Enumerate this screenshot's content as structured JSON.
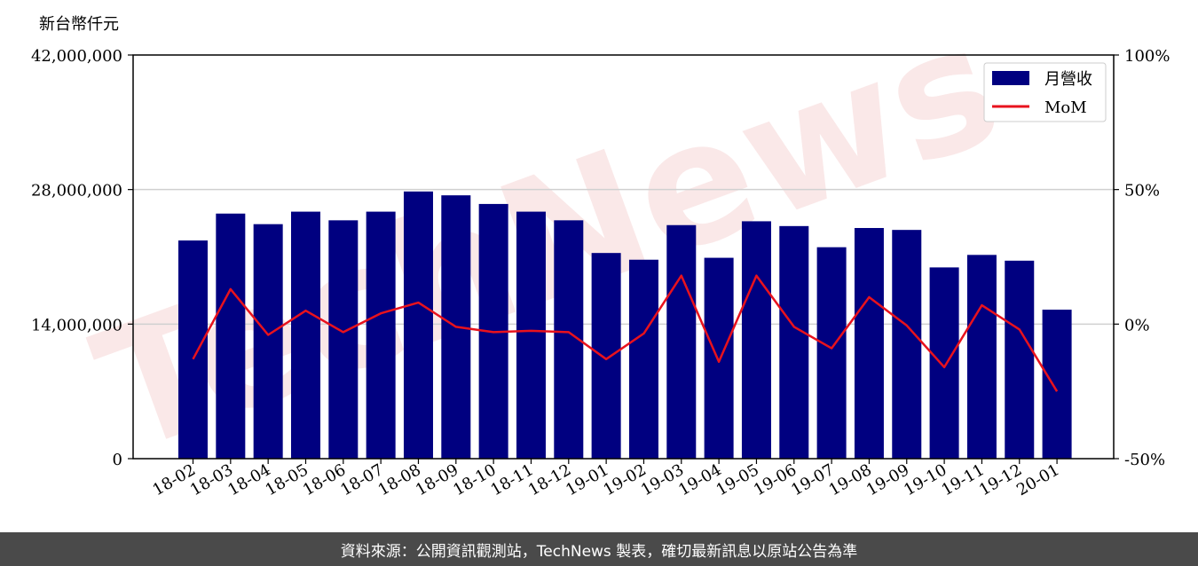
{
  "chart_data": {
    "type": "bar",
    "unit_label": "新台幣仟元",
    "categories": [
      "18-02",
      "18-03",
      "18-04",
      "18-05",
      "18-06",
      "18-07",
      "18-08",
      "18-09",
      "18-10",
      "18-11",
      "18-12",
      "19-01",
      "19-02",
      "19-03",
      "19-04",
      "19-05",
      "19-06",
      "19-07",
      "19-08",
      "19-09",
      "19-10",
      "19-11",
      "19-12",
      "20-01"
    ],
    "series": [
      {
        "name": "月營收",
        "kind": "bar",
        "axis": "left",
        "color": "#000080",
        "values": [
          22700000,
          25500000,
          24400000,
          25700000,
          24800000,
          25700000,
          27800000,
          27400000,
          26500000,
          25700000,
          24800000,
          21400000,
          20700000,
          24300000,
          20900000,
          24700000,
          24200000,
          22000000,
          24000000,
          23800000,
          19900000,
          21200000,
          20600000,
          15500000
        ]
      },
      {
        "name": "MoM",
        "kind": "line",
        "axis": "right",
        "color": "#e8121d",
        "values": [
          -13,
          13,
          -4,
          5,
          -3,
          4,
          8,
          -1,
          -3,
          -2.5,
          -3,
          -13,
          -3.5,
          18,
          -14,
          18,
          -1,
          -9,
          10,
          -0.5,
          -16,
          7,
          -2,
          -25
        ]
      }
    ],
    "y_left": {
      "ylim": [
        0,
        42000000
      ],
      "ticks": [
        "0",
        "14,000,000",
        "28,000,000",
        "42,000,000"
      ],
      "tick_values": [
        0,
        14000000,
        28000000,
        42000000
      ]
    },
    "y_right": {
      "ylim": [
        -50,
        100
      ],
      "ticks": [
        "-50%",
        "0%",
        "50%",
        "100%"
      ],
      "tick_values": [
        -50,
        0,
        50,
        100
      ]
    },
    "grid": "horizontal",
    "legend_position": "top-right"
  },
  "watermark": "TechNews",
  "footer": {
    "source_text": "資料來源：公開資訊觀測站，TechNews 製表，確切最新訊息以原站公告為準"
  }
}
